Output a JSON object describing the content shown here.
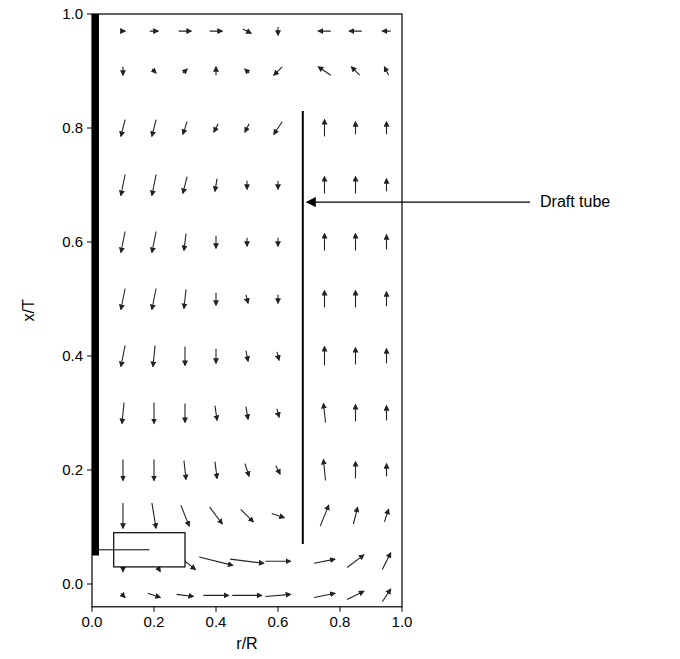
{
  "chart_data": {
    "type": "quiver",
    "x_label": "r/R",
    "y_label": "x/T",
    "xlim": [
      0,
      1.0
    ],
    "ylim": [
      -0.04,
      1.0
    ],
    "xticks": [
      {
        "value": 0,
        "label": "0.0"
      },
      {
        "value": 0.2,
        "label": "0.2"
      },
      {
        "value": 0.4,
        "label": "0.4"
      },
      {
        "value": 0.6,
        "label": "0.6"
      },
      {
        "value": 0.8,
        "label": "0.8"
      },
      {
        "value": 1.0,
        "label": "1.0"
      }
    ],
    "yticks": [
      {
        "value": 0,
        "label": "0.0"
      },
      {
        "value": 0.2,
        "label": "0.2"
      },
      {
        "value": 0.4,
        "label": "0.4"
      },
      {
        "value": 0.6,
        "label": "0.6"
      },
      {
        "value": 0.8,
        "label": "0.8"
      },
      {
        "value": 1.0,
        "label": "1.0"
      }
    ],
    "color": "#222222",
    "r": [
      0.1,
      0.2,
      0.3,
      0.4,
      0.5,
      0.6,
      0.75,
      0.85,
      0.95
    ],
    "x": [
      0.97,
      0.9,
      0.8,
      0.7,
      0.6,
      0.5,
      0.4,
      0.3,
      0.2,
      0.12,
      0.04,
      -0.02
    ],
    "u": [
      [
        0.1,
        0.2,
        0.3,
        0.3,
        0.2,
        0.0,
        -0.3,
        -0.3,
        -0.2
      ],
      [
        0.0,
        0.1,
        0.1,
        0.0,
        -0.1,
        -0.2,
        -0.3,
        -0.2,
        -0.1
      ],
      [
        -0.1,
        -0.1,
        -0.1,
        -0.1,
        -0.1,
        -0.2,
        0.0,
        0.0,
        0.0
      ],
      [
        -0.1,
        -0.1,
        -0.1,
        -0.05,
        0,
        0,
        0,
        0,
        0
      ],
      [
        -0.1,
        -0.1,
        -0.05,
        0,
        0,
        0,
        0,
        0,
        0
      ],
      [
        -0.1,
        -0.1,
        -0.05,
        0,
        0.05,
        0,
        0,
        0,
        0
      ],
      [
        -0.1,
        -0.05,
        0,
        0,
        0.05,
        0.05,
        0,
        0,
        0
      ],
      [
        -0.05,
        0,
        0,
        0.05,
        0.05,
        0.05,
        -0.05,
        0,
        0
      ],
      [
        0,
        0,
        0.05,
        0.05,
        0.1,
        0.1,
        -0.05,
        0,
        0
      ],
      [
        0,
        0.1,
        0.2,
        0.3,
        0.3,
        0.3,
        0.2,
        0.1,
        0.1
      ],
      [
        0,
        0.3,
        0.5,
        0.8,
        0.8,
        0.6,
        0.5,
        0.4,
        0.2
      ],
      [
        0.1,
        0.3,
        0.4,
        0.6,
        0.7,
        0.6,
        0.5,
        0.4,
        0.2
      ]
    ],
    "v": [
      [
        0,
        0,
        0,
        0,
        -0.1,
        -0.2,
        0.0,
        0.0,
        0.0
      ],
      [
        -0.2,
        -0.1,
        0.1,
        0.2,
        0.1,
        -0.2,
        0.2,
        0.2,
        0.2
      ],
      [
        -0.4,
        -0.4,
        -0.3,
        -0.2,
        -0.2,
        -0.3,
        0.4,
        0.3,
        0.3
      ],
      [
        -0.5,
        -0.5,
        -0.4,
        -0.3,
        -0.2,
        -0.2,
        0.4,
        0.4,
        0.3
      ],
      [
        -0.5,
        -0.5,
        -0.4,
        -0.3,
        -0.2,
        -0.2,
        0.4,
        0.4,
        0.35
      ],
      [
        -0.5,
        -0.5,
        -0.45,
        -0.3,
        -0.2,
        -0.2,
        0.4,
        0.4,
        0.35
      ],
      [
        -0.5,
        -0.5,
        -0.45,
        -0.35,
        -0.25,
        -0.2,
        0.45,
        0.4,
        0.35
      ],
      [
        -0.5,
        -0.5,
        -0.45,
        -0.35,
        -0.3,
        -0.2,
        0.45,
        0.4,
        0.35
      ],
      [
        -0.5,
        -0.5,
        -0.45,
        -0.4,
        -0.3,
        -0.2,
        0.5,
        0.4,
        0.3
      ],
      [
        -0.6,
        -0.6,
        -0.5,
        -0.4,
        -0.3,
        -0.1,
        0.5,
        0.4,
        0.3
      ],
      [
        -0.5,
        -0.5,
        -0.4,
        -0.2,
        -0.1,
        0,
        0.1,
        0.3,
        0.4
      ],
      [
        -0.1,
        -0.1,
        -0.05,
        0,
        0,
        0.05,
        0.1,
        0.2,
        0.3
      ]
    ],
    "shaft": {
      "r": 0,
      "x": [
        0.05,
        1.0
      ]
    },
    "impeller": {
      "r": [
        0.07,
        0.3
      ],
      "x": [
        0.03,
        0.09
      ]
    },
    "draft_tube": {
      "r": 0.68,
      "x": [
        0.07,
        0.83
      ]
    },
    "annotation": {
      "text": "Draft tube",
      "r": 0.68,
      "x": 0.67
    }
  }
}
